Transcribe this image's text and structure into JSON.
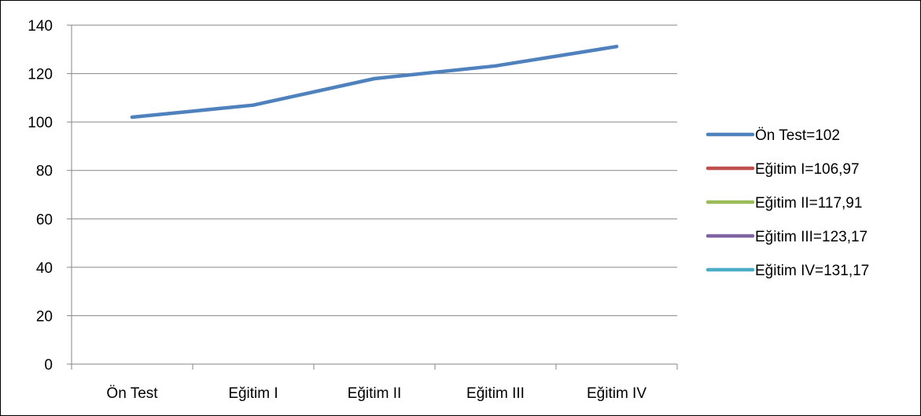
{
  "chart_data": {
    "type": "line",
    "title": "",
    "xlabel": "",
    "ylabel": "",
    "ylim": [
      0,
      140
    ],
    "yticks": [
      0,
      20,
      40,
      60,
      80,
      100,
      120,
      140
    ],
    "grid": true,
    "legend_position": "right",
    "categories": [
      "Ön Test",
      "Eğitim I",
      "Eğitim II",
      "Eğitim III",
      "Eğitim IV"
    ],
    "series": [
      {
        "values": [
          102,
          106.97,
          117.91,
          123.17,
          131.17
        ],
        "color": "#4F81BD"
      }
    ],
    "legend": [
      {
        "label": "Ön Test=102",
        "color": "#4F81BD"
      },
      {
        "label": "Eğitim I=106,97",
        "color": "#C0504D"
      },
      {
        "label": "Eğitim II=117,91",
        "color": "#9BBB59"
      },
      {
        "label": "Eğitim III=123,17",
        "color": "#8064A2"
      },
      {
        "label": "Eğitim IV=131,17",
        "color": "#4BACC6"
      }
    ]
  }
}
